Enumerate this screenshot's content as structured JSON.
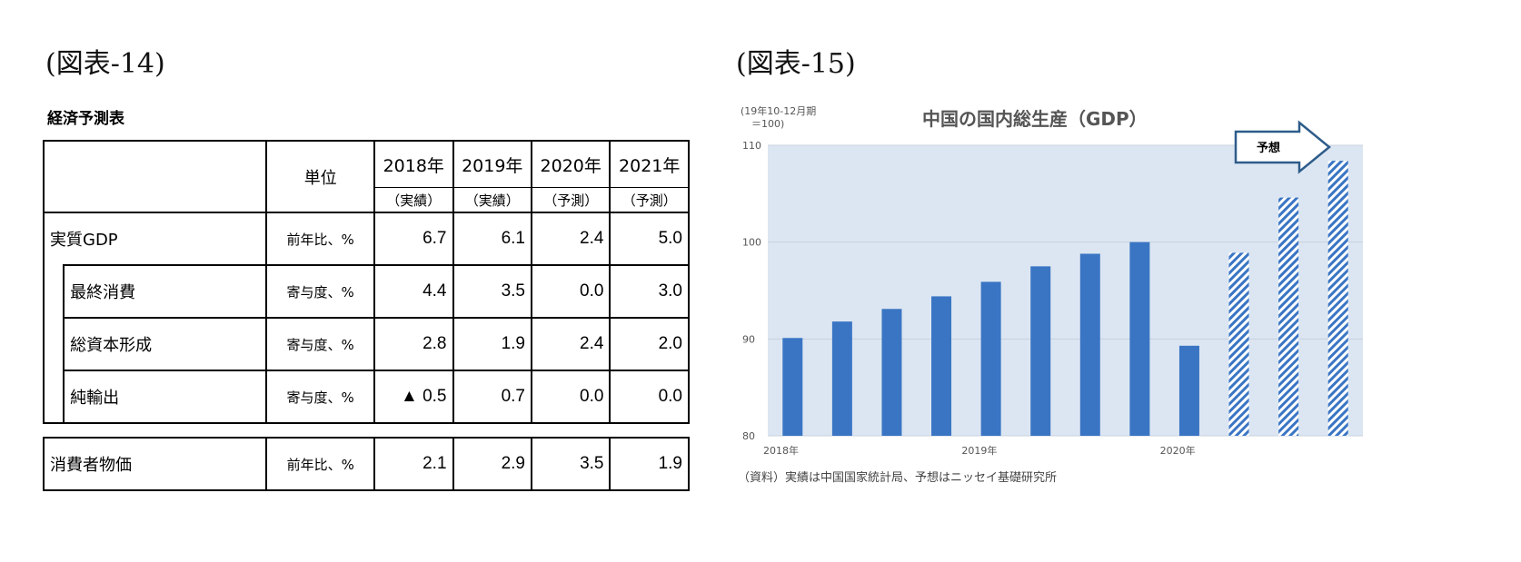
{
  "fig14": {
    "label": "(図表-14)",
    "title": "経済予測表",
    "header": {
      "unit": "単位",
      "years": [
        "2018年",
        "2019年",
        "2020年",
        "2021年"
      ],
      "types": [
        "（実績）",
        "（実績）",
        "（予測）",
        "（予測）"
      ]
    },
    "rows": [
      {
        "name": "実質GDP",
        "unit": "前年比、%",
        "values": [
          "6.7",
          "6.1",
          "2.4",
          "5.0"
        ]
      },
      {
        "name": "最終消費",
        "unit": "寄与度、%",
        "values": [
          "4.4",
          "3.5",
          "0.0",
          "3.0"
        ]
      },
      {
        "name": "総資本形成",
        "unit": "寄与度、%",
        "values": [
          "2.8",
          "1.9",
          "2.4",
          "2.0"
        ]
      },
      {
        "name": "純輸出",
        "unit": "寄与度、%",
        "values": [
          "▲ 0.5",
          "0.7",
          "0.0",
          "0.0"
        ]
      }
    ],
    "cpi": {
      "name": "消費者物価",
      "unit": "前年比、%",
      "values": [
        "2.1",
        "2.9",
        "3.5",
        "1.9"
      ]
    }
  },
  "fig15": {
    "label": "(図表-15)",
    "source": "（資料）実績は中国国家統計局、予想はニッセイ基礎研究所"
  },
  "chart_data": {
    "type": "bar",
    "title": "中国の国内総生産（GDP）",
    "ylabel_line1": "(19年10-12月期",
    "ylabel_line2": "＝100)",
    "ylim": [
      80,
      110
    ],
    "yticks": [
      "80",
      "90",
      "100",
      "110"
    ],
    "xtick_labels": [
      "2018年",
      "2019年",
      "2020年"
    ],
    "forecast_label": "予想",
    "values": [
      90.1,
      91.8,
      93.1,
      94.4,
      95.9,
      97.5,
      98.8,
      100.0,
      89.3,
      98.9,
      104.6,
      108.4
    ],
    "forecast": [
      false,
      false,
      false,
      false,
      false,
      false,
      false,
      false,
      false,
      true,
      true,
      true
    ],
    "colors": {
      "bar": "#3a75c4",
      "plot_bg": "#dce6f2"
    }
  }
}
